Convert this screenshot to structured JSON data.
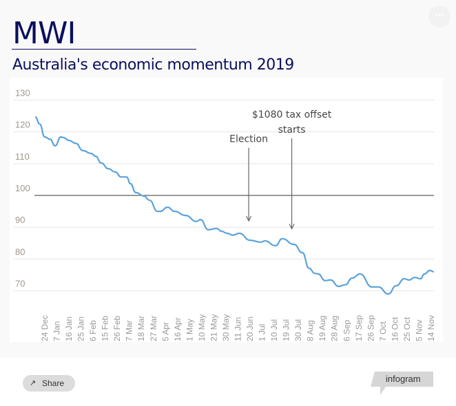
{
  "header": {
    "title": "MWI",
    "subtitle": "Australia's economic momentum 2019",
    "menu_icon": "ellipsis-icon"
  },
  "footer": {
    "share_label": "Share",
    "share_icon": "share-icon",
    "brand": "infogram"
  },
  "colors": {
    "title": "#0b0f5c",
    "line": "#5aa2db",
    "reference_line": "#333333",
    "grid": "#e6e6e6",
    "axis_labels": "#a0968c"
  },
  "chart_data": {
    "type": "line",
    "title": "",
    "xlabel": "",
    "ylabel": "",
    "ylim": [
      65,
      130
    ],
    "y_ticks": [
      130,
      120,
      110,
      100,
      90,
      80,
      70
    ],
    "grid": true,
    "reference_line": 100,
    "x_ticks": [
      {
        "label": "24 Dec",
        "date": "2018-12-24"
      },
      {
        "label": "7 Jan",
        "date": "2019-01-07"
      },
      {
        "label": "16 Jan",
        "date": "2019-01-16"
      },
      {
        "label": "25 Jan",
        "date": "2019-01-25"
      },
      {
        "label": "6 Feb",
        "date": "2019-02-06"
      },
      {
        "label": "15 Feb",
        "date": "2019-02-15"
      },
      {
        "label": "26 Feb",
        "date": "2019-02-26"
      },
      {
        "label": "7 Mar",
        "date": "2019-03-07"
      },
      {
        "label": "18 Mar",
        "date": "2019-03-18"
      },
      {
        "label": "27 Mar",
        "date": "2019-03-27"
      },
      {
        "label": "5 Apr",
        "date": "2019-04-05"
      },
      {
        "label": "16 Apr",
        "date": "2019-04-16"
      },
      {
        "label": "1 May",
        "date": "2019-05-01"
      },
      {
        "label": "10 May",
        "date": "2019-05-10"
      },
      {
        "label": "21 May",
        "date": "2019-05-21"
      },
      {
        "label": "30 May",
        "date": "2019-05-30"
      },
      {
        "label": "11 Jun",
        "date": "2019-06-11"
      },
      {
        "label": "20 Jun",
        "date": "2019-06-20"
      },
      {
        "label": "1 Jul",
        "date": "2019-07-01"
      },
      {
        "label": "10 Jul",
        "date": "2019-07-10"
      },
      {
        "label": "19 Jul",
        "date": "2019-07-19"
      },
      {
        "label": "30 Jul",
        "date": "2019-07-30"
      },
      {
        "label": "8 Aug",
        "date": "2019-08-08"
      },
      {
        "label": "19 Aug",
        "date": "2019-08-19"
      },
      {
        "label": "28 Aug",
        "date": "2019-08-28"
      },
      {
        "label": "6 Sep",
        "date": "2019-09-06"
      },
      {
        "label": "17 Sep",
        "date": "2019-09-17"
      },
      {
        "label": "26 Sep",
        "date": "2019-09-26"
      },
      {
        "label": "7 Oct",
        "date": "2019-10-07"
      },
      {
        "label": "16 Oct",
        "date": "2019-10-16"
      },
      {
        "label": "25 Oct",
        "date": "2019-10-25"
      },
      {
        "label": "5 Nov",
        "date": "2019-11-05"
      },
      {
        "label": "14 Nov",
        "date": "2019-11-14"
      }
    ],
    "series": [
      {
        "points": [
          [
            "2018-12-13",
            124.7
          ],
          [
            "2018-12-18",
            122.5
          ],
          [
            "2018-12-24",
            118.4
          ],
          [
            "2018-12-30",
            117.7
          ],
          [
            "2019-01-05",
            115.6
          ],
          [
            "2019-01-10",
            118.4
          ],
          [
            "2019-01-12",
            118.2
          ],
          [
            "2019-01-16",
            117.3
          ],
          [
            "2019-01-21",
            116.4
          ],
          [
            "2019-01-27",
            114.1
          ],
          [
            "2019-02-04",
            113.2
          ],
          [
            "2019-02-08",
            112.3
          ],
          [
            "2019-02-12",
            110.2
          ],
          [
            "2019-02-18",
            108.4
          ],
          [
            "2019-02-24",
            107.4
          ],
          [
            "2019-03-01",
            105.8
          ],
          [
            "2019-03-05",
            105.8
          ],
          [
            "2019-03-08",
            103.7
          ],
          [
            "2019-03-13",
            100.9
          ],
          [
            "2019-03-20",
            99.8
          ],
          [
            "2019-03-24",
            98.5
          ],
          [
            "2019-03-30",
            95.0
          ],
          [
            "2019-04-01",
            95.0
          ],
          [
            "2019-04-07",
            96.3
          ],
          [
            "2019-04-13",
            95.0
          ],
          [
            "2019-04-26",
            93.7
          ],
          [
            "2019-05-06",
            91.8
          ],
          [
            "2019-05-09",
            92.4
          ],
          [
            "2019-05-16",
            89.2
          ],
          [
            "2019-05-23",
            89.6
          ],
          [
            "2019-05-27",
            88.7
          ],
          [
            "2019-05-31",
            88.1
          ],
          [
            "2019-06-06",
            87.5
          ],
          [
            "2019-06-12",
            88.1
          ],
          [
            "2019-06-20",
            85.9
          ],
          [
            "2019-06-30",
            85.3
          ],
          [
            "2019-07-03",
            85.7
          ],
          [
            "2019-07-11",
            84.2
          ],
          [
            "2019-07-16",
            86.4
          ],
          [
            "2019-07-26",
            84.6
          ],
          [
            "2019-08-02",
            82.0
          ],
          [
            "2019-08-07",
            77.1
          ],
          [
            "2019-08-12",
            75.5
          ],
          [
            "2019-08-15",
            75.3
          ],
          [
            "2019-08-21",
            73.2
          ],
          [
            "2019-08-25",
            73.4
          ],
          [
            "2019-08-31",
            71.4
          ],
          [
            "2019-09-05",
            71.9
          ],
          [
            "2019-09-11",
            74.0
          ],
          [
            "2019-09-18",
            75.3
          ],
          [
            "2019-09-27",
            71.2
          ],
          [
            "2019-10-03",
            71.2
          ],
          [
            "2019-10-11",
            69.0
          ],
          [
            "2019-10-17",
            71.6
          ],
          [
            "2019-10-23",
            73.8
          ],
          [
            "2019-10-27",
            73.4
          ],
          [
            "2019-11-01",
            74.2
          ],
          [
            "2019-11-06",
            73.8
          ],
          [
            "2019-11-09",
            75.3
          ],
          [
            "2019-11-13",
            76.4
          ],
          [
            "2019-11-16",
            76.0
          ]
        ]
      }
    ],
    "annotations": [
      {
        "lines": [
          "Election"
        ],
        "date": "2019-06-19",
        "from_value": 115,
        "to_value": 92
      },
      {
        "lines": [
          "$1080 tax offset",
          "starts"
        ],
        "date": "2019-07-24",
        "from_value": 118,
        "to_value": 89.5
      }
    ]
  }
}
